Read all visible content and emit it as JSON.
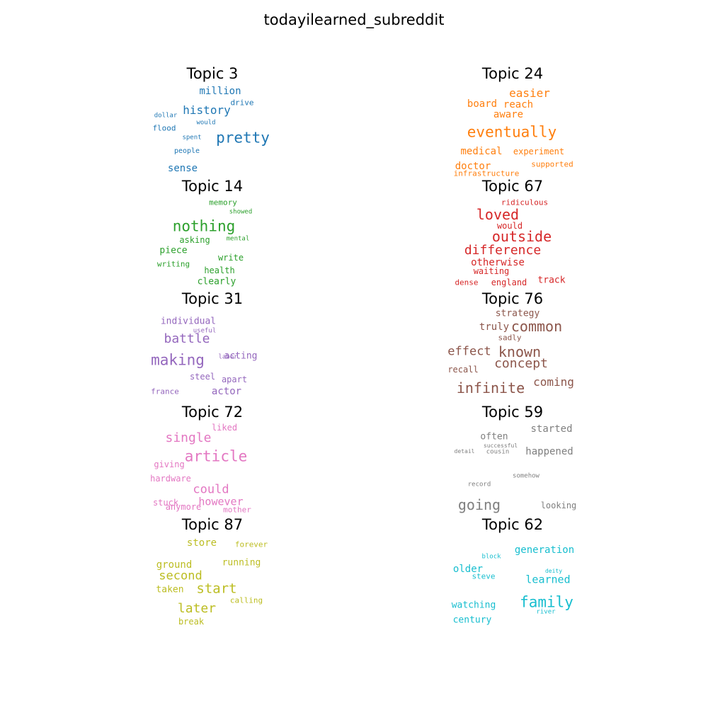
{
  "title": "todayilearned_subreddit",
  "topics": [
    {
      "id": "topic-3",
      "title": "Topic 3",
      "color": "#1f77b4",
      "words": [
        "million",
        "drive",
        "history",
        "dollar",
        "would",
        "flood",
        "pretty",
        "spent",
        "people",
        "sense"
      ]
    },
    {
      "id": "topic-24",
      "title": "Topic 24",
      "color": "#ff7f0e",
      "words": [
        "easier",
        "board",
        "reach",
        "aware",
        "eventually",
        "medical",
        "experiment",
        "doctor",
        "supported",
        "infrastructure"
      ]
    },
    {
      "id": "topic-14",
      "title": "Topic 14",
      "color": "#2ca02c",
      "words": [
        "memory",
        "showed",
        "nothing",
        "asking",
        "mental",
        "piece",
        "write",
        "writing",
        "health",
        "clearly"
      ]
    },
    {
      "id": "topic-67",
      "title": "Topic 67",
      "color": "#d62728",
      "words": [
        "ridiculous",
        "loved",
        "would",
        "outside",
        "difference",
        "otherwise",
        "waiting",
        "track",
        "dense",
        "england"
      ]
    },
    {
      "id": "topic-31",
      "title": "Topic 31",
      "color": "#9467bd",
      "words": [
        "individual",
        "useful",
        "battle",
        "making",
        "labor",
        "acting",
        "steel",
        "apart",
        "france",
        "actor"
      ]
    },
    {
      "id": "topic-76",
      "title": "Topic 76",
      "color": "#8c564b",
      "words": [
        "strategy",
        "truly",
        "common",
        "sadly",
        "effect",
        "known",
        "concept",
        "recall",
        "infinite",
        "coming"
      ]
    },
    {
      "id": "topic-72",
      "title": "Topic 72",
      "color": "#e377c2",
      "words": [
        "liked",
        "single",
        "article",
        "giving",
        "hardware",
        "could",
        "however",
        "stuck",
        "anymore",
        "mother"
      ]
    },
    {
      "id": "topic-59",
      "title": "Topic 59",
      "color": "#7f7f7f",
      "words": [
        "started",
        "often",
        "successful",
        "detail",
        "cousin",
        "happened",
        "somehow",
        "record",
        "going",
        "looking"
      ]
    },
    {
      "id": "topic-87",
      "title": "Topic 87",
      "color": "#bcbd22",
      "words": [
        "store",
        "forever",
        "running",
        "ground",
        "second",
        "start",
        "taken",
        "calling",
        "later",
        "break"
      ]
    },
    {
      "id": "topic-62",
      "title": "Topic 62",
      "color": "#17becf",
      "words": [
        "generation",
        "block",
        "older",
        "deity",
        "steve",
        "learned",
        "family",
        "watching",
        "river",
        "century"
      ]
    }
  ]
}
